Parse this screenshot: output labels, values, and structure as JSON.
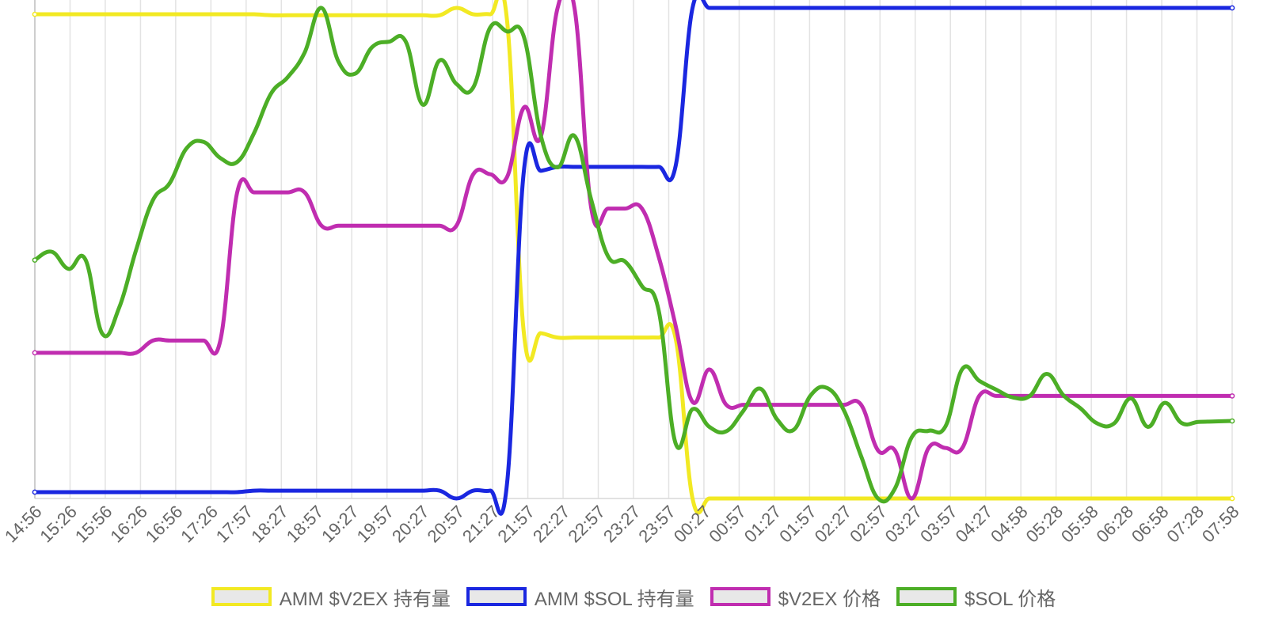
{
  "chart_data": {
    "type": "line",
    "title": "",
    "xlabel": "",
    "ylabel": "",
    "grid": "vertical",
    "legend_position": "bottom",
    "ylim": [
      0,
      100
    ],
    "x_tick_labels": [
      "14:56",
      "15:26",
      "15:56",
      "16:26",
      "16:56",
      "17:26",
      "17:57",
      "18:27",
      "18:57",
      "19:27",
      "19:57",
      "20:27",
      "20:57",
      "21:27",
      "21:57",
      "22:27",
      "22:57",
      "23:27",
      "23:57",
      "00:27",
      "00:57",
      "01:27",
      "01:57",
      "02:27",
      "02:57",
      "03:27",
      "03:57",
      "04:27",
      "04:58",
      "05:28",
      "05:58",
      "06:28",
      "06:58",
      "07:28",
      "07:58"
    ],
    "series": [
      {
        "name": "AMM $V2EX 持有量",
        "color": "#f2e923",
        "values": [
          98.7,
          98.7,
          98.7,
          98.7,
          98.7,
          98.7,
          98.7,
          98.7,
          98.7,
          98.7,
          98.7,
          98.7,
          98.7,
          98.7,
          98.5,
          98.5,
          98.5,
          98.5,
          98.5,
          98.5,
          98.5,
          98.5,
          98.5,
          98.5,
          98.5,
          100,
          98.7,
          98.7,
          97.5,
          33.7,
          33.7,
          32.8,
          32.8,
          32.8,
          32.8,
          32.8,
          32.8,
          32.8,
          32.6,
          0,
          0,
          0,
          0,
          0,
          0,
          0,
          0,
          0,
          0,
          0,
          0,
          0,
          0,
          0,
          0,
          0,
          0,
          0,
          0,
          0,
          0,
          0,
          0,
          0,
          0,
          0,
          0,
          0,
          0,
          0,
          0,
          0
        ]
      },
      {
        "name": "AMM $SOL 持有量",
        "color": "#1a27e0",
        "values": [
          1.3,
          1.3,
          1.3,
          1.3,
          1.3,
          1.3,
          1.3,
          1.3,
          1.3,
          1.3,
          1.3,
          1.3,
          1.3,
          1.6,
          1.6,
          1.6,
          1.6,
          1.6,
          1.6,
          1.6,
          1.6,
          1.6,
          1.6,
          1.6,
          1.6,
          0,
          1.6,
          1.6,
          3,
          66.8,
          66.8,
          67.6,
          67.6,
          67.6,
          67.6,
          67.6,
          67.6,
          67.6,
          67.8,
          100,
          100,
          100,
          100,
          100,
          100,
          100,
          100,
          100,
          100,
          100,
          100,
          100,
          100,
          100,
          100,
          100,
          100,
          100,
          100,
          100,
          100,
          100,
          100,
          100,
          100,
          100,
          100,
          100,
          100,
          100,
          100,
          100
        ]
      },
      {
        "name": "$V2EX 价格",
        "color": "#c02db0",
        "values": [
          29.7,
          29.7,
          29.7,
          29.7,
          29.7,
          29.7,
          29.7,
          32.2,
          32.2,
          32.2,
          32.2,
          32.2,
          62.4,
          62.4,
          62.4,
          62.4,
          62.4,
          55.6,
          55.6,
          55.6,
          55.6,
          55.6,
          55.6,
          55.6,
          55.6,
          55.6,
          66.1,
          66.1,
          65.5,
          79.7,
          73.7,
          100,
          100,
          59.1,
          59.1,
          59.1,
          59.1,
          49.2,
          35.2,
          19.7,
          26.3,
          19.1,
          19.1,
          19.1,
          19.1,
          19.1,
          19.1,
          19.1,
          19.1,
          19.1,
          9.8,
          9.8,
          0,
          10.3,
          10.3,
          10.3,
          20.9,
          20.9,
          20.9,
          20.9,
          20.9,
          20.9,
          20.9,
          20.9,
          20.9,
          20.9,
          20.9,
          20.9,
          20.9,
          20.9,
          20.9,
          20.9
        ]
      },
      {
        "name": "$SOL 价格",
        "color": "#4cae26",
        "values": [
          48.6,
          50.3,
          46.8,
          48.7,
          33.6,
          38.9,
          50.6,
          60.8,
          64.3,
          71.4,
          72.7,
          69.4,
          68.6,
          74.5,
          82.5,
          85.9,
          90.9,
          100,
          89.1,
          86.6,
          92.0,
          93.1,
          93.1,
          80.3,
          89.3,
          84.5,
          83.8,
          96.0,
          95.2,
          94.1,
          74.0,
          67.5,
          73.9,
          60.8,
          49.3,
          48.3,
          43.3,
          38.2,
          11.2,
          18.2,
          14.6,
          13.7,
          17.8,
          22.4,
          16.2,
          14.0,
          21.0,
          22.5,
          17.8,
          8.6,
          0,
          2.0,
          12.5,
          13.8,
          14.7,
          26.4,
          24.0,
          22.2,
          20.6,
          20.9,
          25.4,
          21.0,
          18.4,
          15.3,
          15.3,
          20.4,
          14.6,
          19.5,
          15.4,
          15.6,
          15.7,
          15.8
        ]
      }
    ]
  }
}
